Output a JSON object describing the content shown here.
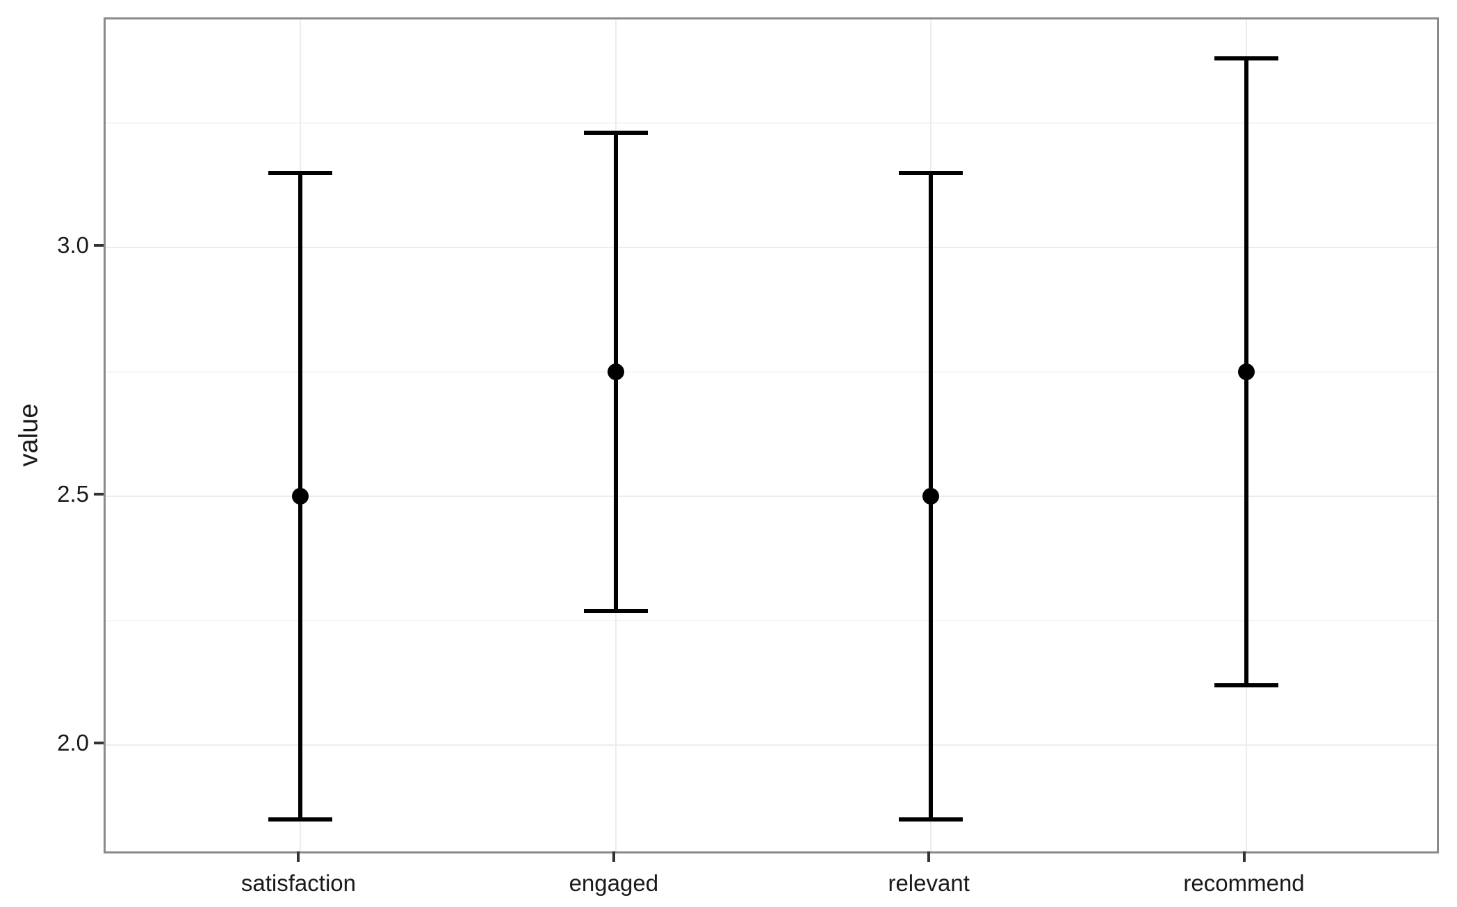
{
  "figure": {
    "background": "#ffffff"
  },
  "chart_data": {
    "type": "pointrange",
    "title": "",
    "xlabel": "",
    "ylabel": "value",
    "categories": [
      "satisfaction",
      "engaged",
      "relevant",
      "recommend"
    ],
    "series": [
      {
        "category": "satisfaction",
        "mean": 2.5,
        "lower": 1.85,
        "upper": 3.15
      },
      {
        "category": "engaged",
        "mean": 2.75,
        "lower": 2.27,
        "upper": 3.23
      },
      {
        "category": "relevant",
        "mean": 2.5,
        "lower": 1.85,
        "upper": 3.15
      },
      {
        "category": "recommend",
        "mean": 2.75,
        "lower": 2.12,
        "upper": 3.38
      }
    ],
    "ylim": [
      1.778,
      3.458
    ],
    "yticks_major": [
      {
        "value": 2.0,
        "label": "2.0"
      },
      {
        "value": 2.5,
        "label": "2.5"
      },
      {
        "value": 3.0,
        "label": "3.0"
      }
    ],
    "yticks_minor": [
      2.25,
      2.75,
      3.25
    ],
    "grid": "on",
    "legend_position": "none",
    "colors": {
      "point": "#000000",
      "range_line": "#000000",
      "grid_major": "#ececec",
      "grid_minor": "#f6f6f6",
      "panel_border": "#8a8a8a",
      "tick_mark": "#333333",
      "text": "#1a1a1a"
    }
  }
}
